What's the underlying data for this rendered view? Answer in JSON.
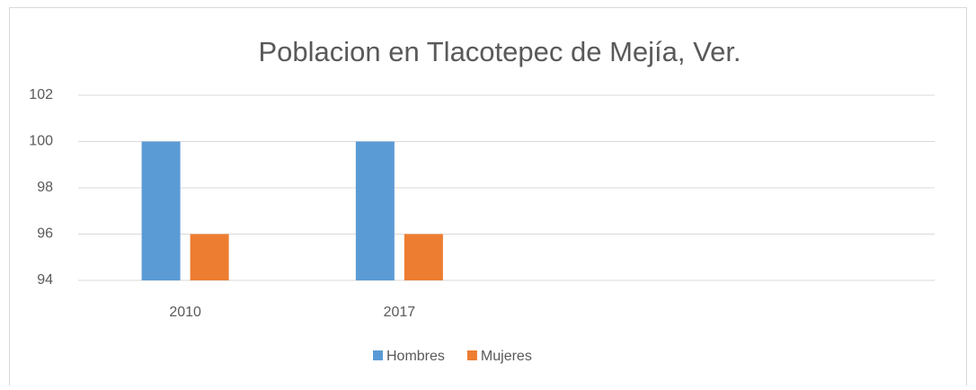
{
  "chart_data": {
    "type": "bar",
    "title": "Poblacion en Tlacotepec de Mejía, Ver.",
    "categories": [
      "2010",
      "2017",
      null,
      null
    ],
    "series": [
      {
        "name": "Hombres",
        "color": "#5b9bd5",
        "values": [
          100,
          100,
          null,
          null
        ]
      },
      {
        "name": "Mujeres",
        "color": "#ed7d31",
        "values": [
          96,
          96,
          null,
          null
        ]
      }
    ],
    "ylim": [
      94,
      102
    ],
    "yticks": [
      94,
      96,
      98,
      100,
      102
    ],
    "grid": true,
    "legend": "bottom"
  }
}
